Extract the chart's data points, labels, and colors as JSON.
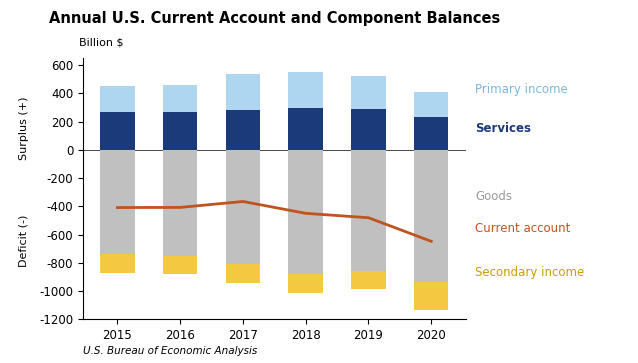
{
  "years": [
    2015,
    2016,
    2017,
    2018,
    2019,
    2020
  ],
  "primary_income": [
    190,
    195,
    255,
    248,
    232,
    175
  ],
  "services": [
    265,
    265,
    285,
    300,
    290,
    235
  ],
  "goods": [
    -740,
    -750,
    -810,
    -880,
    -855,
    -935
  ],
  "secondary_income": [
    -130,
    -130,
    -130,
    -130,
    -130,
    -195
  ],
  "current_account": [
    -408,
    -407,
    -365,
    -449,
    -480,
    -647
  ],
  "color_primary": "#aed6f1",
  "color_services": "#1a3a7a",
  "color_goods": "#c0c0c0",
  "color_secondary": "#f5c842",
  "color_current_account": "#c0531f",
  "title": "Annual U.S. Current Account and Component Balances",
  "ylabel_top": "Billion $",
  "ylabel_surplus": "Surplus (+)",
  "ylabel_deficit": "Deficit (-)",
  "ylim": [
    -1200,
    650
  ],
  "yticks": [
    -1200,
    -1000,
    -800,
    -600,
    -400,
    -200,
    0,
    200,
    400,
    600
  ],
  "source": "U.S. Bureau of Economic Analysis",
  "label_primary": "Primary income",
  "label_services": "Services",
  "label_goods": "Goods",
  "label_current": "Current account",
  "label_secondary": "Secondary income",
  "label_primary_color": "#7ab8d9",
  "label_services_color": "#1a3a7a",
  "label_goods_color": "#999999",
  "label_current_color": "#c0531f",
  "label_secondary_color": "#c8a000"
}
